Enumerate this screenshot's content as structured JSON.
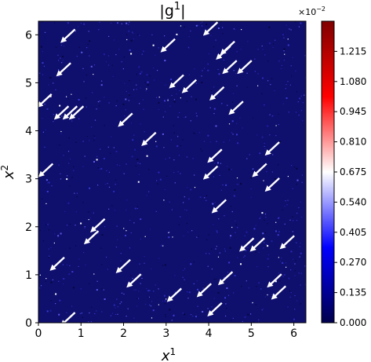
{
  "chart_data": {
    "type": "heatmap",
    "title": "|g¹|",
    "title_main": "|g",
    "title_sup": "1",
    "xlabel_main": "x",
    "xlabel_sup": "1",
    "ylabel_main": "x",
    "ylabel_sup": "2",
    "xlim": [
      0,
      6.2832
    ],
    "ylim": [
      0,
      6.2832
    ],
    "x_ticks": [
      0,
      1,
      2,
      3,
      4,
      5,
      6
    ],
    "y_ticks": [
      0,
      1,
      2,
      3,
      4,
      5,
      6
    ],
    "colorbar": {
      "multiplier_base": "×10",
      "multiplier_exp": "−2",
      "range": [
        0,
        1.35
      ],
      "ticks": [
        "0.000",
        "0.135",
        "0.270",
        "0.405",
        "0.540",
        "0.675",
        "0.810",
        "0.945",
        "1.080",
        "1.215"
      ],
      "colormap": "seismic"
    },
    "background_color": "#0f0f6e",
    "arrow_color": "#ffffff",
    "quiver": {
      "direction": "down-left",
      "points": [
        [
          0.6,
          5.9
        ],
        [
          0.5,
          5.2
        ],
        [
          0.05,
          4.55
        ],
        [
          0.45,
          4.3
        ],
        [
          0.65,
          4.3
        ],
        [
          0.8,
          4.3
        ],
        [
          2.95,
          5.7
        ],
        [
          1.95,
          4.15
        ],
        [
          2.5,
          3.75
        ],
        [
          3.15,
          4.95
        ],
        [
          3.45,
          4.85
        ],
        [
          3.95,
          6.05
        ],
        [
          4.25,
          5.55
        ],
        [
          4.35,
          5.65
        ],
        [
          4.4,
          5.25
        ],
        [
          4.75,
          5.25
        ],
        [
          4.1,
          4.7
        ],
        [
          4.55,
          4.4
        ],
        [
          4.05,
          3.4
        ],
        [
          3.95,
          3.05
        ],
        [
          5.4,
          3.55
        ],
        [
          5.1,
          3.1
        ],
        [
          5.4,
          2.8
        ],
        [
          4.15,
          2.35
        ],
        [
          0.08,
          3.1
        ],
        [
          1.3,
          1.95
        ],
        [
          1.15,
          1.7
        ],
        [
          4.8,
          1.55
        ],
        [
          5.05,
          1.55
        ],
        [
          5.75,
          1.6
        ],
        [
          0.35,
          1.15
        ],
        [
          1.9,
          1.1
        ],
        [
          2.15,
          0.8
        ],
        [
          3.1,
          0.5
        ],
        [
          3.8,
          0.6
        ],
        [
          4.3,
          0.85
        ],
        [
          5.45,
          0.8
        ],
        [
          5.55,
          0.55
        ],
        [
          4.05,
          0.2
        ],
        [
          0.6,
          0.0
        ]
      ]
    }
  }
}
